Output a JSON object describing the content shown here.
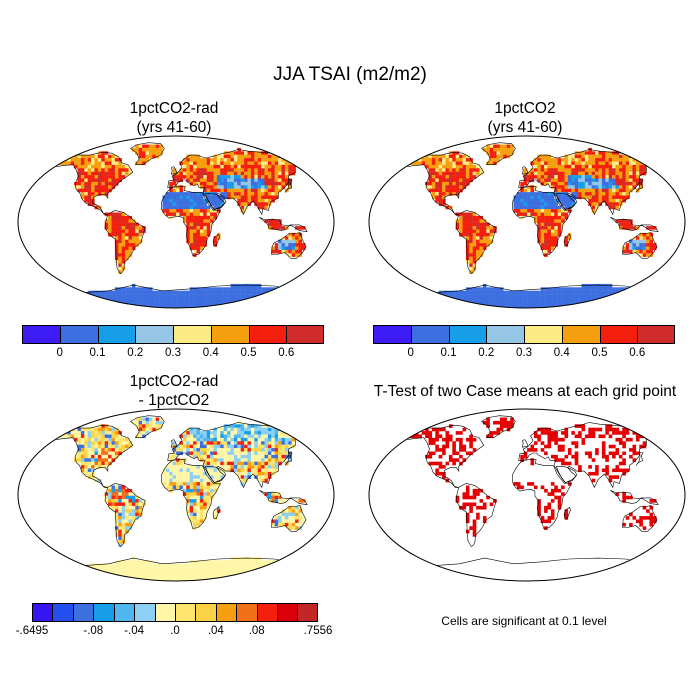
{
  "figure": {
    "title": "JJA TSAI (m2/m2)"
  },
  "panels": [
    {
      "title_line1": "1pctCO2-rad",
      "title_line2": "(yrs 41-60)",
      "field": "absolute"
    },
    {
      "title_line1": "1pctCO2",
      "title_line2": "(yrs 41-60)",
      "field": "absolute"
    },
    {
      "title_line1": "1pctCO2-rad",
      "title_line2": "- 1pctCO2",
      "field": "difference"
    },
    {
      "title_line1": "T-Test of two Case means at each grid point",
      "title_line2": "",
      "field": "significance",
      "note": "Cells are significant at 0.1 level"
    }
  ],
  "colorbars": {
    "absolute": {
      "colors": [
        "#3d1cf5",
        "#3d6fe0",
        "#169fe8",
        "#95c6e6",
        "#fcea85",
        "#f7a00f",
        "#f51f0d",
        "#d12c2c"
      ],
      "tick_labels": [
        "0",
        "0.1",
        "0.2",
        "0.3",
        "0.4",
        "0.5",
        "0.6"
      ]
    },
    "difference": {
      "colors": [
        "#3516f0",
        "#2450f0",
        "#3d6fe0",
        "#169fe8",
        "#4fb6ef",
        "#8cd0f5",
        "#fff6a8",
        "#fce46e",
        "#fad246",
        "#f7a00f",
        "#f2701a",
        "#f51f0d",
        "#d9000a",
        "#c22626"
      ],
      "tick_labels": [
        "-.6495",
        "-.08",
        "-.04",
        ".0",
        ".04",
        ".08",
        ".7556"
      ]
    },
    "significance_color": "#e60000"
  },
  "map_colors": {
    "ocean": "#ffffff",
    "desert_low": "#3d6fe0",
    "veg_mid": "#f7a00f",
    "veg_high": "#f51f0d",
    "diff_base": "#fff6a8",
    "diff_neg": "#8cd0f5"
  }
}
